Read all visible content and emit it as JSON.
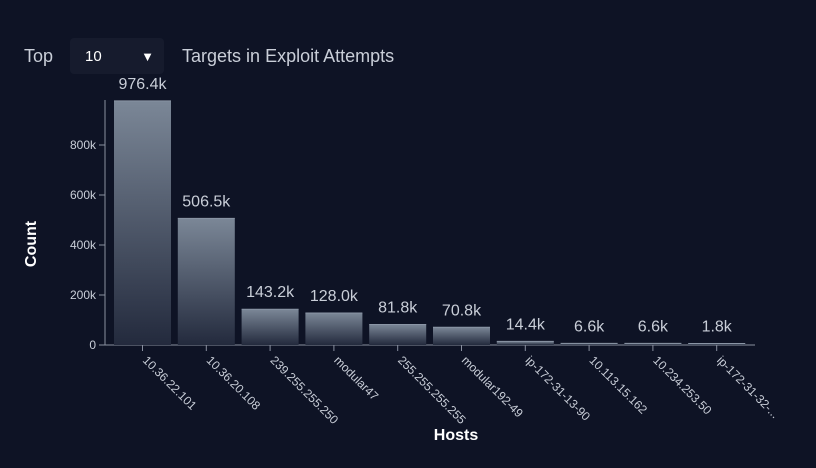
{
  "header": {
    "top_label": "Top",
    "top_select_value": "10",
    "title": "Targets in Exploit Attempts"
  },
  "colors": {
    "background": "#0e1325",
    "bar_top": "#7b8797",
    "bar_bottom": "#232a3d",
    "axis": "#8a90a0",
    "text": "#c9ced8"
  },
  "chart_data": {
    "type": "bar",
    "title": "Targets in Exploit Attempts",
    "xlabel": "Hosts",
    "ylabel": "Count",
    "ylim": [
      0,
      980000
    ],
    "yticks": [
      0,
      200000,
      400000,
      600000,
      800000
    ],
    "ytick_labels": [
      "0",
      "200k",
      "400k",
      "600k",
      "800k"
    ],
    "categories": [
      "10.36.22.101",
      "10.36.20.108",
      "239.255.255.250",
      "modular47",
      "255.255.255.255",
      "modular192-49",
      "ip-172-31-13-90",
      "10.113.15.162",
      "10.234.253.50",
      "ip-172-31-32-..."
    ],
    "values": [
      976400,
      506500,
      143200,
      128000,
      81800,
      70800,
      14400,
      6600,
      6600,
      1800
    ],
    "value_labels": [
      "976.4k",
      "506.5k",
      "143.2k",
      "128.0k",
      "81.8k",
      "70.8k",
      "14.4k",
      "6.6k",
      "6.6k",
      "1.8k"
    ],
    "grid": false,
    "legend": "none"
  }
}
